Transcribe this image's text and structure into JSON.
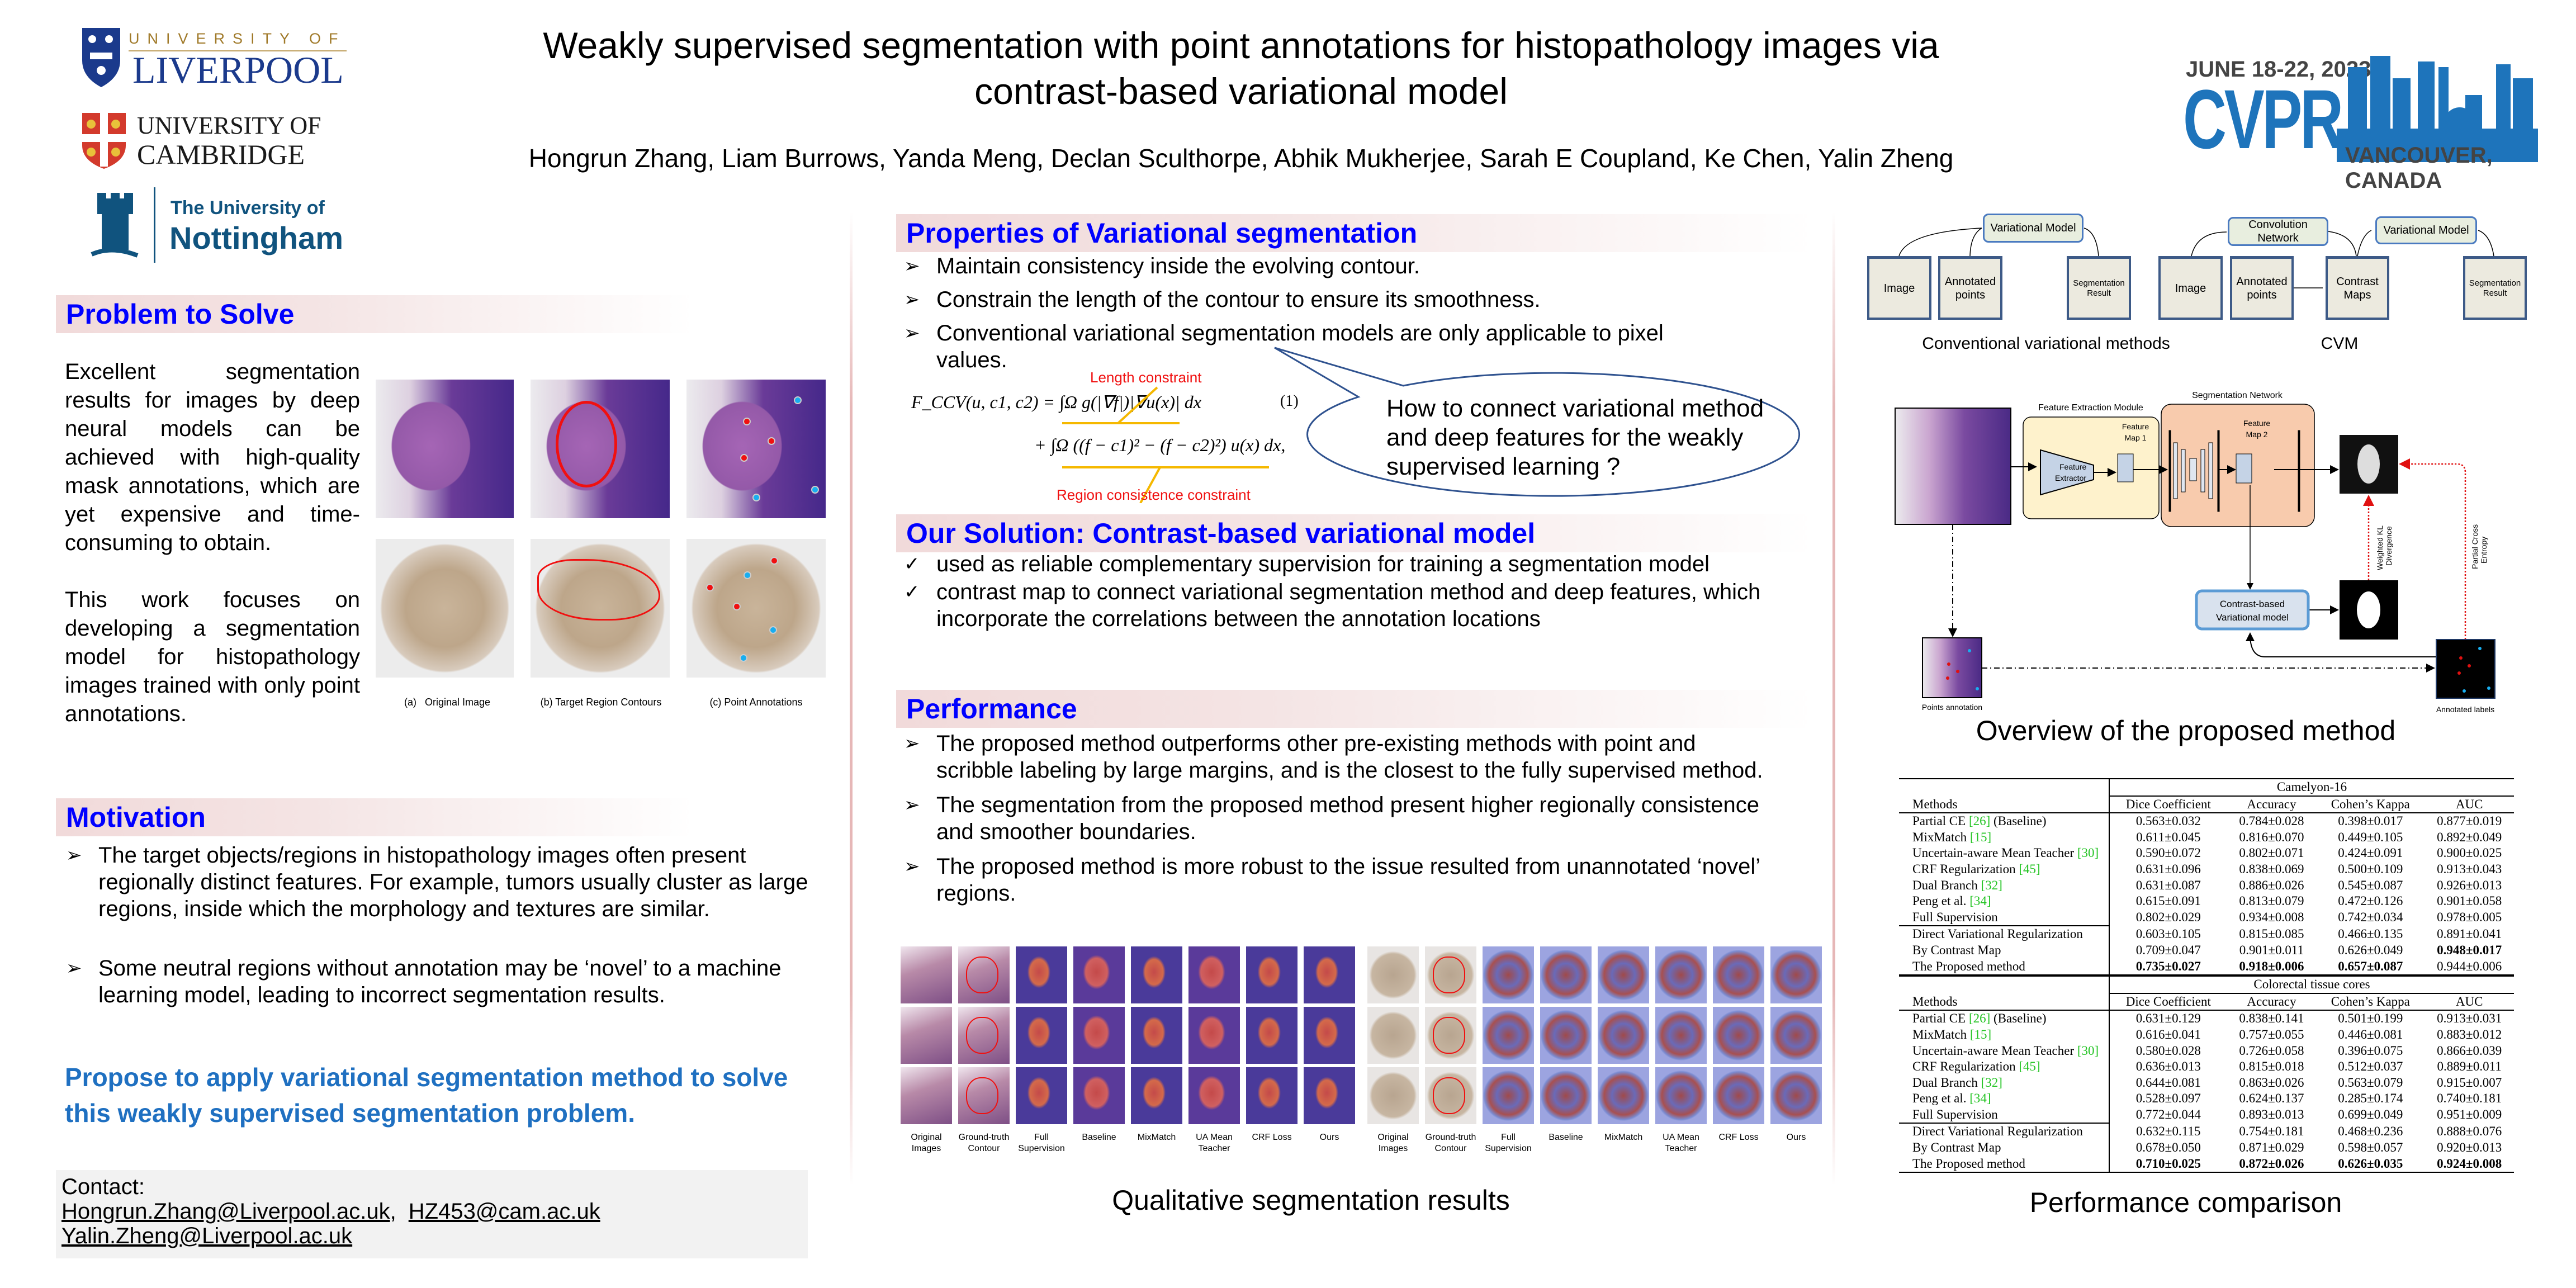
{
  "header": {
    "title_line1": "Weakly supervised segmentation with point annotations for histopathology images via",
    "title_line2": "contrast-based variational model",
    "authors": "Hongrun Zhang, Liam Burrows, Yanda Meng, Declan Sculthorpe, Abhik Mukherjee, Sarah E Coupland, Ke Chen, Yalin Zheng",
    "logos": {
      "liverpool_top": "UNIVERSITY OF",
      "liverpool_main": "LIVERPOOL",
      "cambridge_top": "UNIVERSITY OF",
      "cambridge_main": "CAMBRIDGE",
      "nottingham_top": "The University of",
      "nottingham_main": "Nottingham",
      "cvpr_dates": "JUNE 18-22, 2023",
      "cvpr_name": "CVPR",
      "cvpr_location": "VANCOUVER, CANADA"
    },
    "colors": {
      "liverpool_blue": "#1b3a8c",
      "liverpool_gold": "#a07a2a",
      "nottingham_blue": "#10537e",
      "cvpr_blue": "#1e74bb"
    }
  },
  "problem": {
    "heading": "Problem to Solve",
    "para1": "Excellent segmentation results for images by deep neural models can be achieved with high-quality mask annotations, which are yet expensive and time-consuming to obtain.",
    "para2": "This work focuses on developing a segmentation model for histopathology images trained with only point annotations.",
    "figure_captions": [
      "(a)   Original Image",
      "(b) Target Region Contours",
      "(c) Point Annotations"
    ]
  },
  "motivation": {
    "heading": "Motivation",
    "bullets": [
      "The target objects/regions in histopathology images often present regionally distinct features. For example, tumors usually cluster as large regions, inside which the morphology and textures are similar.",
      "Some neutral regions without annotation may be ‘novel’ to a machine learning model, leading to incorrect segmentation results."
    ],
    "proposal": "Propose to apply variational segmentation method to solve this weakly supervised segmentation problem.",
    "proposal_color": "#1f70c1"
  },
  "contact": {
    "label": "Contact:",
    "email1": "Hongrun.Zhang@Liverpool.ac.uk",
    "separator": ",",
    "email2": "HZ453@cam.ac.uk",
    "email3": "Yalin.Zheng@Liverpool.ac.uk"
  },
  "properties": {
    "heading": "Properties of Variational segmentation",
    "bullets": [
      "Maintain consistency inside the evolving contour.",
      "Constrain the length of the contour to ensure its smoothness.",
      "Conventional variational segmentation models are only applicable to pixel values."
    ],
    "formula_line1": "F_CCV(u, c1, c2) = ∫Ω g(|∇f|)|∇u(x)| dx",
    "formula_line2": "+ ∫Ω ((f − c1)² − (f − c2)²) u(x) dx,",
    "equation_number": "(1)",
    "length_label": "Length constraint",
    "region_label": "Region consistence constraint",
    "callout": "How to connect variational method and deep features for the weakly supervised learning ?"
  },
  "solution": {
    "heading": "Our Solution: Contrast-based variational model",
    "bullets": [
      "used as reliable complementary supervision for training a segmentation model",
      "contrast map to connect variational segmentation method and deep features, which incorporate the correlations between the annotation locations"
    ]
  },
  "performance": {
    "heading": "Performance",
    "bullets": [
      "The proposed method outperforms other pre-existing methods with point and scribble labeling by large margins, and is the closest to the fully supervised method.",
      "The segmentation from the proposed method present higher regionally consistence and smoother boundaries.",
      "The proposed method is more robust to the issue resulted from unannotated ‘novel’ regions."
    ],
    "qualitative_columns": [
      "Original Images",
      "Ground-truth Contour",
      "Full Supervision",
      "Baseline",
      "MixMatch",
      "UA Mean Teacher",
      "CRF Loss",
      "Ours"
    ],
    "qualitative_caption": "Qualitative segmentation results"
  },
  "methods_diagram": {
    "conventional": {
      "variational_model": "Variational Model",
      "image": "Image",
      "annotated_points": "Annotated points",
      "result": "Segmentation Result",
      "caption": "Conventional variational methods"
    },
    "cvm": {
      "conv_net": "Convolution Network",
      "variational_model": "Variational Model",
      "image": "Image",
      "annotated_points": "Annotated points",
      "contrast_maps": "Contrast Maps",
      "result": "Segmentation Result",
      "caption": "CVM"
    }
  },
  "overview": {
    "feature_module": "Feature Extraction Module",
    "segmentation_network": "Segmentation Network",
    "feature_extractor_1": "Feature",
    "feature_extractor_2": "Extractor",
    "feature_map1_a": "Feature",
    "feature_map1_b": "Map 1",
    "feature_map2_a": "Feature",
    "feature_map2_b": "Map 2",
    "cbvm_1": "Contrast-based",
    "cbvm_2": "Variational model",
    "kl_1": "Weighted KL",
    "kl_2": "Divergence",
    "pce_1": "Partial Cross",
    "pce_2": "Entropy",
    "points_annotation": "Points annotation",
    "annotated_labels": "Annotated labels",
    "caption": "Overview of the proposed method"
  },
  "results_table": {
    "methods_header": "Methods",
    "columns": [
      "Dice Coefficient",
      "Accuracy",
      "Cohen’s Kappa",
      "AUC"
    ],
    "cite_color": "#22c322",
    "methods": [
      {
        "name": "Partial CE ",
        "cite": "[26]",
        "suffix": " (Baseline)"
      },
      {
        "name": "MixMatch ",
        "cite": "[15]",
        "suffix": ""
      },
      {
        "name": "Uncertain-aware Mean Teacher ",
        "cite": "[30]",
        "suffix": ""
      },
      {
        "name": "CRF Regularization ",
        "cite": "[45]",
        "suffix": ""
      },
      {
        "name": "Dual Branch ",
        "cite": "[32]",
        "suffix": ""
      },
      {
        "name": "Peng et al. ",
        "cite": "[34]",
        "suffix": ""
      },
      {
        "name": "Full Supervision",
        "cite": "",
        "suffix": ""
      },
      {
        "name": "Direct Variational Regularization",
        "cite": "",
        "suffix": ""
      },
      {
        "name": "By Contrast Map",
        "cite": "",
        "suffix": ""
      },
      {
        "name": "The Proposed method",
        "cite": "",
        "suffix": ""
      }
    ],
    "datasets": [
      {
        "name": "Camelyon-16",
        "rows": [
          [
            "0.563±0.032",
            "0.784±0.028",
            "0.398±0.017",
            "0.877±0.019"
          ],
          [
            "0.611±0.045",
            "0.816±0.070",
            "0.449±0.105",
            "0.892±0.049"
          ],
          [
            "0.590±0.072",
            "0.802±0.071",
            "0.424±0.091",
            "0.900±0.025"
          ],
          [
            "0.631±0.096",
            "0.838±0.069",
            "0.500±0.109",
            "0.913±0.043"
          ],
          [
            "0.631±0.087",
            "0.886±0.026",
            "0.545±0.087",
            "0.926±0.013"
          ],
          [
            "0.615±0.091",
            "0.813±0.079",
            "0.472±0.126",
            "0.901±0.058"
          ],
          [
            "0.802±0.029",
            "0.934±0.008",
            "0.742±0.034",
            "0.978±0.005"
          ],
          [
            "0.603±0.105",
            "0.815±0.085",
            "0.466±0.135",
            "0.891±0.041"
          ],
          [
            "0.709±0.047",
            "0.901±0.011",
            "0.626±0.049",
            "0.948±0.017"
          ],
          [
            "0.735±0.027",
            "0.918±0.006",
            "0.657±0.087",
            "0.944±0.006"
          ]
        ],
        "bold": [
          [
            8,
            3
          ],
          [
            9,
            0
          ],
          [
            9,
            1
          ],
          [
            9,
            2
          ]
        ]
      },
      {
        "name": "Colorectal tissue cores",
        "rows": [
          [
            "0.631±0.129",
            "0.838±0.141",
            "0.501±0.199",
            "0.913±0.031"
          ],
          [
            "0.616±0.041",
            "0.757±0.055",
            "0.446±0.081",
            "0.883±0.012"
          ],
          [
            "0.580±0.028",
            "0.726±0.058",
            "0.396±0.075",
            "0.866±0.039"
          ],
          [
            "0.636±0.013",
            "0.815±0.018",
            "0.512±0.037",
            "0.889±0.011"
          ],
          [
            "0.644±0.081",
            "0.863±0.026",
            "0.563±0.079",
            "0.915±0.007"
          ],
          [
            "0.528±0.097",
            "0.624±0.137",
            "0.285±0.174",
            "0.740±0.181"
          ],
          [
            "0.772±0.044",
            "0.893±0.013",
            "0.699±0.049",
            "0.951±0.009"
          ],
          [
            "0.632±0.115",
            "0.754±0.181",
            "0.468±0.236",
            "0.888±0.076"
          ],
          [
            "0.678±0.050",
            "0.871±0.029",
            "0.598±0.057",
            "0.920±0.013"
          ],
          [
            "0.710±0.025",
            "0.872±0.026",
            "0.626±0.035",
            "0.924±0.008"
          ]
        ],
        "bold": [
          [
            9,
            0
          ],
          [
            9,
            1
          ],
          [
            9,
            2
          ],
          [
            9,
            3
          ]
        ]
      }
    ],
    "caption": "Performance comparison"
  }
}
